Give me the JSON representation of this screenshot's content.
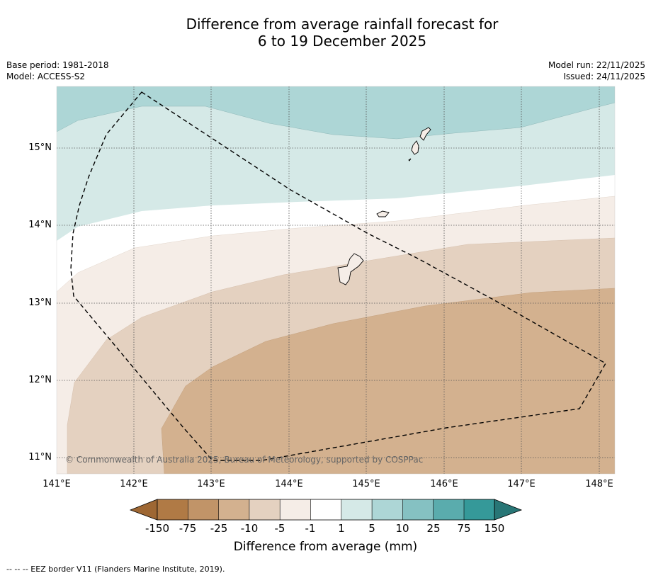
{
  "title": {
    "line1": "Difference from average rainfall forecast for",
    "line2": "6 to 19 December 2025"
  },
  "info_left": {
    "base_period": "Base period: 1981-2018",
    "model": "Model: ACCESS-S2"
  },
  "info_right": {
    "model_run": "Model run: 22/11/2025",
    "issued": "Issued: 24/11/2025"
  },
  "axes": {
    "lat_labels": [
      "15°N",
      "14°N",
      "13°N",
      "12°N",
      "11°N"
    ],
    "lon_labels": [
      "141°E",
      "142°E",
      "143°E",
      "144°E",
      "145°E",
      "146°E",
      "147°E",
      "148°E"
    ]
  },
  "copyright": "© Commonwealth of Australia 2025, Bureau of Meteorology, supported by COSPPac",
  "colorbar": {
    "ticks": [
      "-150",
      "-75",
      "-25",
      "-10",
      "-5",
      "-1",
      "1",
      "5",
      "10",
      "25",
      "75",
      "150"
    ],
    "title": "Difference from average (mm)",
    "colors": [
      "#9e6733",
      "#b07a45",
      "#c19468",
      "#d3b18f",
      "#e4d1c0",
      "#f5ede7",
      "#ffffff",
      "#d5e9e7",
      "#add6d6",
      "#85c1c2",
      "#5aacad",
      "#359999",
      "#287676"
    ]
  },
  "footer": "--  --  -- EEZ border V11 (Flanders Marine Institute, 2019)."
}
